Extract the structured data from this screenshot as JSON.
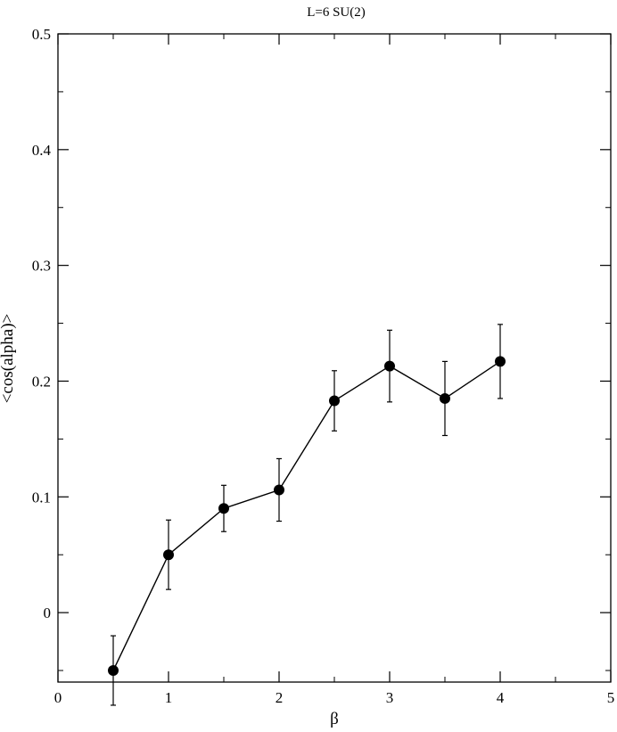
{
  "chart_data": {
    "type": "scatter",
    "title": "L=6 SU(2)",
    "xlabel": "β",
    "ylabel": "<cos(alpha)>",
    "xlim": [
      0,
      5
    ],
    "ylim": [
      -0.06,
      0.5
    ],
    "x_ticks": [
      0,
      1,
      2,
      3,
      4,
      5
    ],
    "y_ticks": [
      0,
      0.1,
      0.2,
      0.3,
      0.4,
      0.5
    ],
    "x_tick_labels": [
      "0",
      "1",
      "2",
      "3",
      "4",
      "5"
    ],
    "y_tick_labels": [
      "0",
      "0.1",
      "0.2",
      "0.3",
      "0.4",
      "0.5"
    ],
    "grid": false,
    "legend": "none",
    "series": [
      {
        "line": true,
        "marker": "filled-circle",
        "color": "#000000",
        "x": [
          0.5,
          1.0,
          1.5,
          2.0,
          2.5,
          3.0,
          3.5,
          4.0
        ],
        "y": [
          -0.05,
          0.05,
          0.09,
          0.106,
          0.183,
          0.213,
          0.185,
          0.217
        ],
        "y_err": [
          0.03,
          0.03,
          0.02,
          0.027,
          0.026,
          0.031,
          0.032,
          0.032
        ]
      }
    ]
  }
}
